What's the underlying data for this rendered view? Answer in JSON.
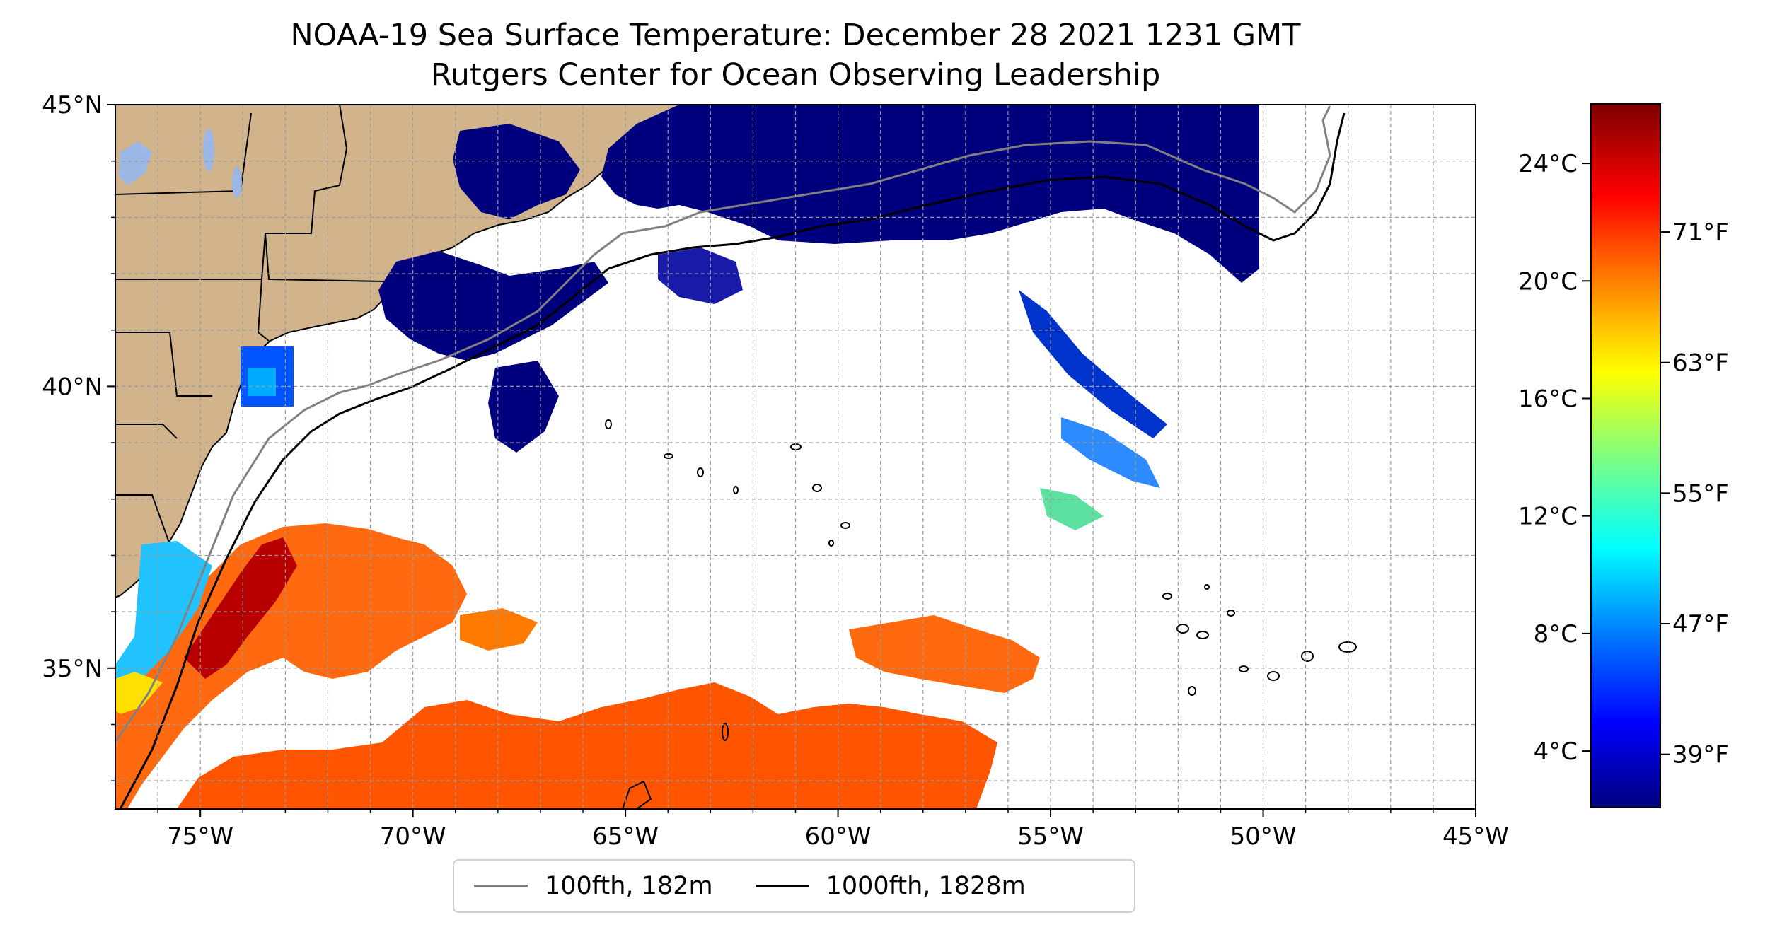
{
  "title": {
    "line1": "NOAA-19 Sea Surface Temperature: December 28 2021 1231 GMT",
    "line2": "Rutgers Center for Ocean Observing Leadership"
  },
  "map": {
    "lon_range": [
      -77,
      -45
    ],
    "lat_range": [
      32.5,
      45
    ],
    "x_ticks": [
      "75°W",
      "70°W",
      "65°W",
      "60°W",
      "55°W",
      "50°W",
      "45°W"
    ],
    "y_ticks": [
      "45°N",
      "40°N",
      "35°N"
    ],
    "gridlines": true,
    "land_color": "#d2b48c",
    "lake_color": "#9ab7e6",
    "missing_data_color": "#ffffff"
  },
  "legend": {
    "items": [
      {
        "label": "100fth, 182m",
        "color": "#808080"
      },
      {
        "label": "1000fth, 1828m",
        "color": "#000000"
      }
    ]
  },
  "colorbar": {
    "colormap": "jet",
    "celsius_ticks": [
      "24°C",
      "20°C",
      "16°C",
      "12°C",
      "8°C",
      "4°C"
    ],
    "fahrenheit_ticks": [
      "71°F",
      "63°F",
      "55°F",
      "47°F",
      "39°F"
    ]
  }
}
